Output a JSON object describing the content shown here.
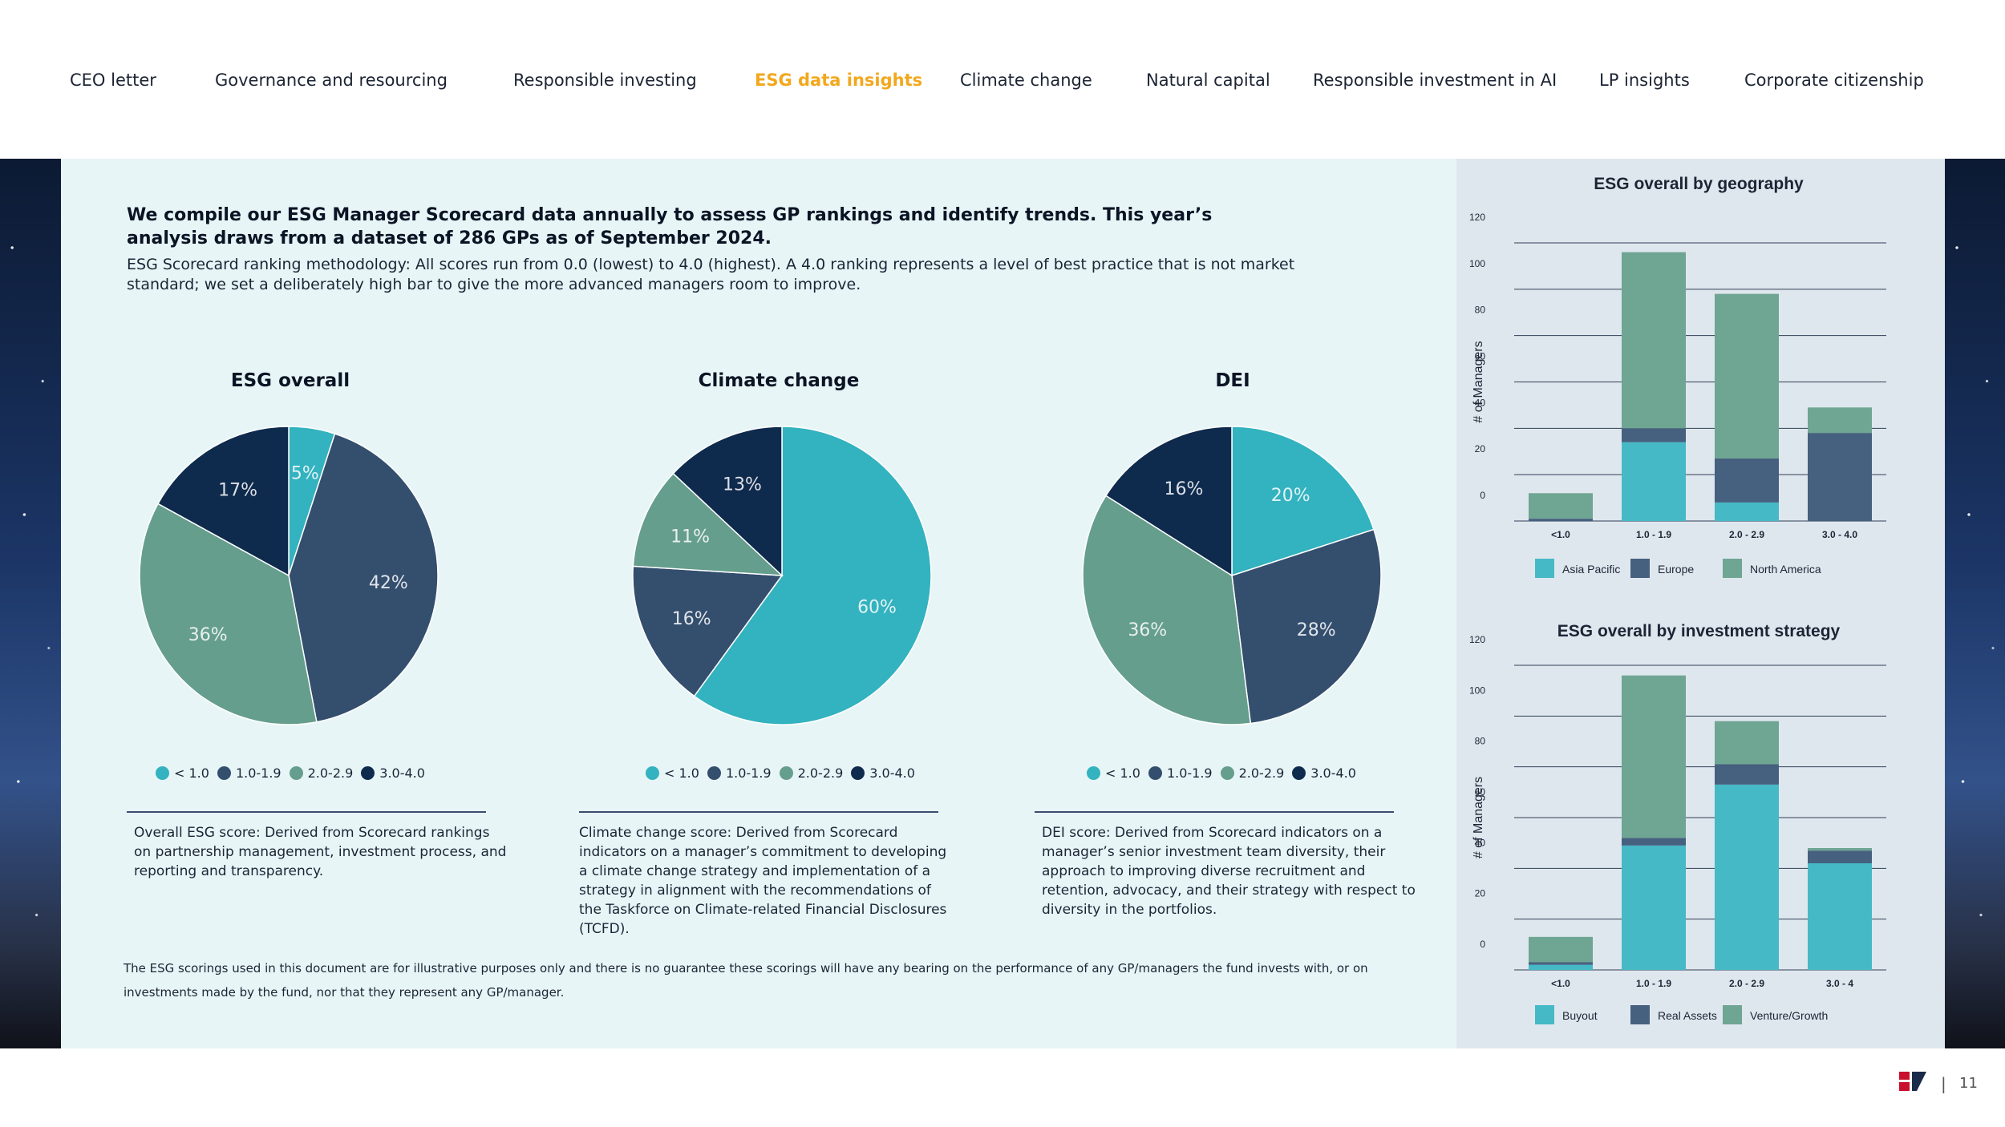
{
  "nav": {
    "items": [
      {
        "label": "CEO letter"
      },
      {
        "label": "Governance and resourcing"
      },
      {
        "label": "Responsible investing"
      },
      {
        "label": "ESG data insights",
        "active": true
      },
      {
        "label": "Climate change"
      },
      {
        "label": "Natural capital"
      },
      {
        "label": "Responsible investment in AI"
      },
      {
        "label": "LP insights"
      },
      {
        "label": "Corporate citizenship"
      }
    ],
    "active_color": "#f2a81d"
  },
  "intro": {
    "bold": "We compile our ESG Manager Scorecard data annually to assess GP rankings and identify trends. This year’s analysis draws from a dataset of 286 GPs as of September 2024.",
    "body": "ESG Scorecard ranking methodology: All scores run from 0.0 (lowest) to 4.0 (highest). A 4.0 ranking represents a level of best practice that is not market standard; we set a deliberately high bar to give the more advanced managers room to improve."
  },
  "colors": {
    "c1": "#33b2bf",
    "c2": "#344e6e",
    "c3": "#659e8c",
    "c4": "#0e2a4d",
    "asia_pacific": "#45b9c6",
    "europe": "#46607f",
    "north_america": "#6fa593"
  },
  "legend_labels": [
    "< 1.0",
    "1.0-1.9",
    "2.0-2.9",
    "3.0-4.0"
  ],
  "pies": [
    {
      "title": "ESG overall",
      "slices": [
        {
          "label": "< 1.0",
          "value": 5,
          "text": "5%"
        },
        {
          "label": "1.0-1.9",
          "value": 42,
          "text": "42%"
        },
        {
          "label": "2.0-2.9",
          "value": 36,
          "text": "36%"
        },
        {
          "label": "3.0-4.0",
          "value": 17,
          "text": "17%"
        }
      ],
      "description": "Overall ESG score: Derived from Scorecard rankings on partnership management, investment process, and reporting and transparency."
    },
    {
      "title": "Climate change",
      "slices": [
        {
          "label": "< 1.0",
          "value": 60,
          "text": "60%"
        },
        {
          "label": "1.0-1.9",
          "value": 16,
          "text": "16%"
        },
        {
          "label": "2.0-2.9",
          "value": 11,
          "text": "11%"
        },
        {
          "label": "3.0-4.0",
          "value": 13,
          "text": "13%"
        }
      ],
      "description": "Climate change score: Derived from Scorecard indicators on a manager’s commitment to developing a climate change strategy and implementation of a strategy in alignment with the recommendations of the Taskforce on Climate-related Financial Disclosures (TCFD)."
    },
    {
      "title": "DEI",
      "slices": [
        {
          "label": "< 1.0",
          "value": 20,
          "text": "20%"
        },
        {
          "label": "1.0-1.9",
          "value": 28,
          "text": "28%"
        },
        {
          "label": "2.0-2.9",
          "value": 36,
          "text": "36%"
        },
        {
          "label": "3.0-4.0",
          "value": 16,
          "text": "16%"
        }
      ],
      "description": "DEI score: Derived from Scorecard indicators on a manager’s senior investment team diversity, their approach to improving diverse recruitment and retention, advocacy, and their strategy with respect to diversity in the portfolios."
    }
  ],
  "chart_data": [
    {
      "type": "bar",
      "stacked": true,
      "title": "ESG overall by geography",
      "ylabel": "# of Managers",
      "ylim": [
        0,
        120
      ],
      "yticks": [
        0,
        20,
        40,
        60,
        80,
        100,
        120
      ],
      "categories": [
        "<1.0",
        "1.0 - 1.9",
        "2.0 - 2.9",
        "3.0 - 4.0"
      ],
      "series": [
        {
          "name": "Asia Pacific",
          "color": "#45b9c6",
          "values": [
            0,
            34,
            8,
            0
          ]
        },
        {
          "name": "Europe",
          "color": "#46607f",
          "values": [
            1,
            6,
            19,
            38
          ]
        },
        {
          "name": "North America",
          "color": "#6fa593",
          "values": [
            11,
            76,
            71,
            11
          ]
        }
      ],
      "legend": "bottom",
      "grid": true
    },
    {
      "type": "bar",
      "stacked": true,
      "title": "ESG overall by investment strategy",
      "ylabel": "# of Managers",
      "ylim": [
        0,
        120
      ],
      "yticks": [
        0,
        20,
        40,
        60,
        80,
        100,
        120
      ],
      "categories": [
        "<1.0",
        "1.0 - 1.9",
        "2.0 - 2.9",
        "3.0 - 4"
      ],
      "series": [
        {
          "name": "Buyout",
          "color": "#45b9c6",
          "values": [
            2,
            49,
            73,
            42
          ]
        },
        {
          "name": "Real Assets",
          "color": "#46607f",
          "values": [
            1,
            3,
            8,
            5
          ]
        },
        {
          "name": "Venture/Growth",
          "color": "#6fa593",
          "values": [
            10,
            64,
            17,
            1
          ]
        }
      ],
      "legend": "bottom",
      "grid": true
    }
  ],
  "disclaimer": "The ESG scorings used in this document are for illustrative purposes only and there is no guarantee these scorings will have any bearing on the performance of any GP/managers the fund invests with, or on investments made by the fund, nor that they represent any GP/manager.",
  "footer": {
    "separator": "|",
    "page_number": "11"
  }
}
